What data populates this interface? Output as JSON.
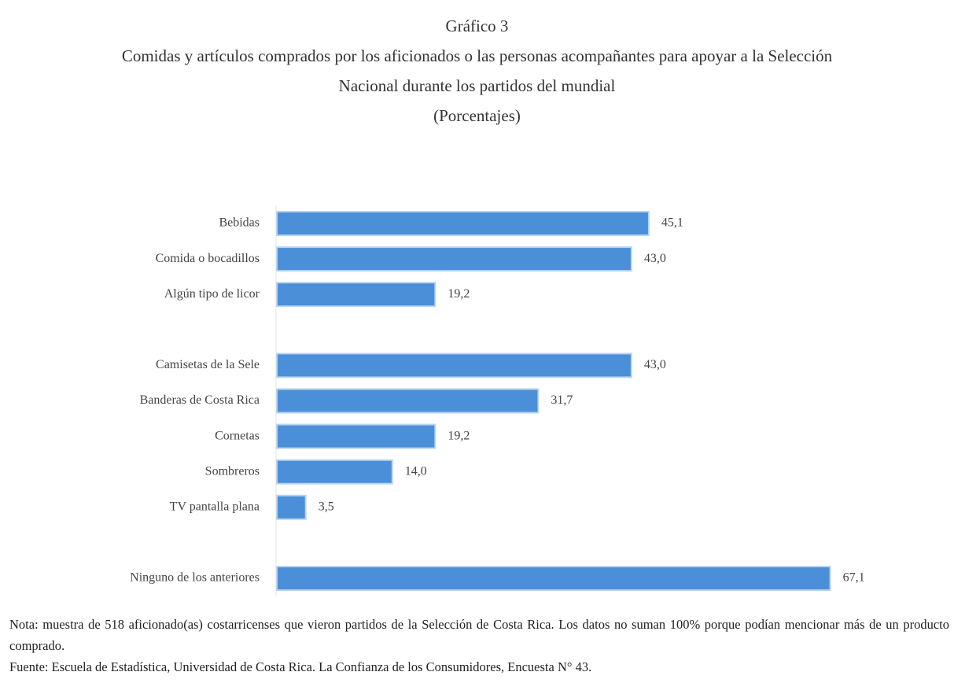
{
  "chart_data": {
    "type": "bar",
    "orientation": "horizontal",
    "label": "Gráfico 3",
    "title": "Comidas y artículos comprados por los aficionados o las personas acompañantes para apoyar a la Selección Nacional durante los partidos del mundial",
    "subtitle": "(Porcentajes)",
    "categories": [
      "Bebidas",
      "Comida o bocadillos",
      "Algún tipo de licor",
      null,
      "Camisetas de la Sele",
      "Banderas de Costa Rica",
      "Cornetas",
      "Sombreros",
      "TV pantalla plana",
      null,
      "Ninguno de los anteriores"
    ],
    "values": [
      45.1,
      43.0,
      19.2,
      null,
      43.0,
      31.7,
      19.2,
      14.0,
      3.5,
      null,
      67.1
    ],
    "value_labels": [
      "45,1",
      "43,0",
      "19,2",
      null,
      "43,0",
      "31,7",
      "19,2",
      "14,0",
      "3,5",
      null,
      "67,1"
    ],
    "color": "#4a8fd8",
    "xlim": [
      0,
      70
    ],
    "notes": [
      "Nota: muestra de 518 aficionado(as) costarricenses que vieron partidos de la Selección de Costa Rica. Los datos no suman 100% porque podían mencionar más de un producto comprado.",
      "Fuente: Escuela de Estadística, Universidad de Costa Rica. La Confianza de los Consumidores, Encuesta N° 43."
    ]
  }
}
